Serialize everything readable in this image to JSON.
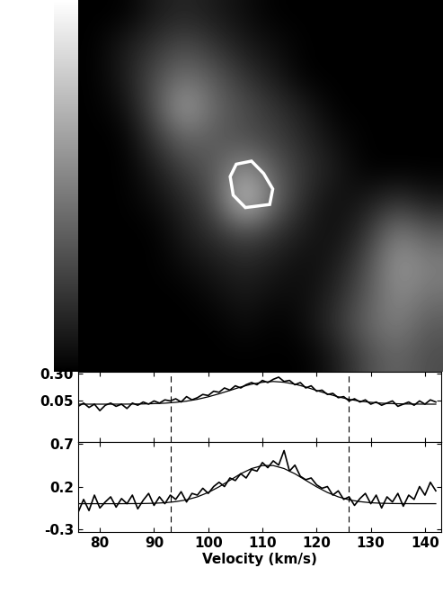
{
  "chart_data": [
    {
      "type": "image",
      "cells": [
        [
          0,
          0,
          0.1,
          0.15,
          0.1,
          0.05,
          0,
          0,
          0,
          0,
          0,
          0
        ],
        [
          0,
          0.1,
          0.2,
          0.3,
          0.2,
          0.1,
          0.05,
          0,
          0,
          0,
          0,
          0
        ],
        [
          0,
          0.1,
          0.3,
          0.45,
          0.35,
          0.2,
          0.1,
          0,
          0,
          0,
          0,
          0
        ],
        [
          0,
          0.05,
          0.3,
          0.65,
          0.4,
          0.3,
          0.2,
          0.1,
          0,
          0,
          0,
          0
        ],
        [
          0,
          0,
          0.2,
          0.4,
          0.35,
          0.3,
          0.25,
          0.15,
          0.05,
          0,
          0,
          0
        ],
        [
          0,
          0,
          0.1,
          0.25,
          0.35,
          0.6,
          0.35,
          0.2,
          0.1,
          0,
          0,
          0
        ],
        [
          0,
          0,
          0.05,
          0.15,
          0.3,
          0.85,
          0.4,
          0.15,
          0.05,
          0.1,
          0.2,
          0.1
        ],
        [
          0,
          0,
          0,
          0.1,
          0.2,
          0.3,
          0.2,
          0.1,
          0.05,
          0.2,
          0.5,
          0.35
        ],
        [
          0,
          0,
          0,
          0.05,
          0.1,
          0.15,
          0.1,
          0.05,
          0.1,
          0.3,
          0.6,
          0.5
        ],
        [
          0,
          0,
          0,
          0,
          0.05,
          0.1,
          0.05,
          0.05,
          0.15,
          0.35,
          0.55,
          0.45
        ],
        [
          0,
          0,
          0,
          0,
          0,
          0.05,
          0,
          0.05,
          0.2,
          0.4,
          0.5,
          0.35
        ],
        [
          0,
          0,
          0,
          0,
          0,
          0,
          0,
          0,
          0.1,
          0.3,
          0.4,
          0.3
        ]
      ],
      "colorbar_range": [
        0,
        1
      ],
      "region_outline": [
        [
          4.7,
          4.8
        ],
        [
          5.2,
          4.7
        ],
        [
          5.6,
          5.1
        ],
        [
          5.9,
          5.6
        ],
        [
          5.8,
          6.1
        ],
        [
          5.0,
          6.2
        ],
        [
          4.6,
          5.8
        ],
        [
          4.5,
          5.2
        ]
      ],
      "color": "#ffffff",
      "tick_labels": false
    },
    {
      "type": "line",
      "xlim": [
        76,
        143
      ],
      "ylim": [
        -0.33,
        0.32
      ],
      "xticks": [
        80,
        90,
        100,
        110,
        120,
        130,
        140
      ],
      "yticks": [
        {
          "value": 0.3,
          "label": "0.30"
        },
        0.05
      ],
      "tick_labels": "y",
      "vlines": [
        93,
        126
      ],
      "series": [
        {
          "type": "line",
          "color": "#000000",
          "x": [
            76,
            77,
            78,
            79,
            80,
            81,
            82,
            83,
            84,
            85,
            86,
            87,
            88,
            89,
            90,
            91,
            92,
            93,
            94,
            95,
            96,
            97,
            98,
            99,
            100,
            101,
            102,
            103,
            104,
            105,
            106,
            107,
            108,
            109,
            110,
            111,
            112,
            113,
            114,
            115,
            116,
            117,
            118,
            119,
            120,
            121,
            122,
            123,
            124,
            125,
            126,
            127,
            128,
            129,
            130,
            131,
            132,
            133,
            134,
            135,
            136,
            137,
            138,
            139,
            140,
            141,
            142
          ],
          "values": [
            0.0,
            0.03,
            -0.01,
            0.02,
            -0.04,
            0.01,
            0.03,
            0.0,
            0.02,
            -0.02,
            0.03,
            0.01,
            0.04,
            0.02,
            0.05,
            0.03,
            0.06,
            0.05,
            0.07,
            0.04,
            0.09,
            0.06,
            0.08,
            0.11,
            0.1,
            0.14,
            0.13,
            0.17,
            0.15,
            0.19,
            0.17,
            0.2,
            0.22,
            0.2,
            0.24,
            0.22,
            0.25,
            0.27,
            0.23,
            0.24,
            0.2,
            0.22,
            0.17,
            0.19,
            0.14,
            0.15,
            0.11,
            0.12,
            0.08,
            0.09,
            0.05,
            0.07,
            0.04,
            0.06,
            0.02,
            0.04,
            0.01,
            0.03,
            0.05,
            0.0,
            0.02,
            0.04,
            0.01,
            0.05,
            0.02,
            0.06,
            0.04
          ]
        },
        {
          "type": "line",
          "color": "#000000",
          "x": [
            76,
            78,
            80,
            82,
            84,
            86,
            88,
            90,
            92,
            94,
            96,
            98,
            100,
            102,
            104,
            106,
            108,
            110,
            112,
            114,
            116,
            118,
            120,
            122,
            124,
            126,
            128,
            130,
            132,
            134,
            136,
            138,
            140,
            142
          ],
          "values": [
            0.02,
            0.02,
            0.02,
            0.02,
            0.02,
            0.021,
            0.022,
            0.025,
            0.029,
            0.037,
            0.048,
            0.065,
            0.088,
            0.116,
            0.147,
            0.179,
            0.205,
            0.223,
            0.23,
            0.223,
            0.205,
            0.179,
            0.147,
            0.116,
            0.088,
            0.065,
            0.048,
            0.037,
            0.029,
            0.025,
            0.022,
            0.021,
            0.02,
            0.02
          ]
        }
      ]
    },
    {
      "type": "line",
      "xlim": [
        76,
        143
      ],
      "ylim": [
        -0.33,
        0.72
      ],
      "xticks": [
        80,
        90,
        100,
        110,
        120,
        130,
        140
      ],
      "yticks": [
        0.7,
        0.2,
        -0.3
      ],
      "x_label": "Velocity (km/s)",
      "vlines": [
        93,
        126
      ],
      "series": [
        {
          "type": "line",
          "color": "#000000",
          "x": [
            76,
            77,
            78,
            79,
            80,
            81,
            82,
            83,
            84,
            85,
            86,
            87,
            88,
            89,
            90,
            91,
            92,
            93,
            94,
            95,
            96,
            97,
            98,
            99,
            100,
            101,
            102,
            103,
            104,
            105,
            106,
            107,
            108,
            109,
            110,
            111,
            112,
            113,
            114,
            115,
            116,
            117,
            118,
            119,
            120,
            121,
            122,
            123,
            124,
            125,
            126,
            127,
            128,
            129,
            130,
            131,
            132,
            133,
            134,
            135,
            136,
            137,
            138,
            139,
            140,
            141,
            142
          ],
          "values": [
            -0.1,
            0.05,
            -0.08,
            0.1,
            -0.05,
            0.02,
            0.08,
            -0.04,
            0.06,
            0.0,
            0.1,
            -0.06,
            0.04,
            0.12,
            -0.02,
            0.08,
            0.0,
            0.1,
            0.05,
            0.14,
            0.02,
            0.12,
            0.1,
            0.18,
            0.12,
            0.2,
            0.25,
            0.2,
            0.3,
            0.27,
            0.35,
            0.3,
            0.4,
            0.38,
            0.48,
            0.42,
            0.5,
            0.45,
            0.62,
            0.38,
            0.45,
            0.32,
            0.28,
            0.3,
            0.22,
            0.18,
            0.2,
            0.1,
            0.15,
            0.05,
            0.08,
            -0.02,
            0.06,
            0.12,
            0.0,
            0.1,
            -0.05,
            0.08,
            0.02,
            0.12,
            -0.03,
            0.1,
            0.05,
            0.2,
            0.1,
            0.25,
            0.15
          ]
        },
        {
          "type": "line",
          "color": "#000000",
          "x": [
            76,
            78,
            80,
            82,
            84,
            86,
            88,
            90,
            92,
            94,
            96,
            98,
            100,
            102,
            104,
            106,
            108,
            110,
            112,
            114,
            116,
            118,
            120,
            122,
            124,
            126,
            128,
            130,
            132,
            134,
            136,
            138,
            140,
            142
          ],
          "values": [
            0,
            0,
            0,
            0,
            0,
            0.001,
            0.002,
            0.005,
            0.011,
            0.024,
            0.045,
            0.08,
            0.131,
            0.197,
            0.273,
            0.349,
            0.41,
            0.445,
            0.445,
            0.41,
            0.349,
            0.273,
            0.197,
            0.131,
            0.08,
            0.045,
            0.024,
            0.011,
            0.005,
            0.002,
            0.001,
            0,
            0,
            0
          ]
        }
      ]
    }
  ]
}
